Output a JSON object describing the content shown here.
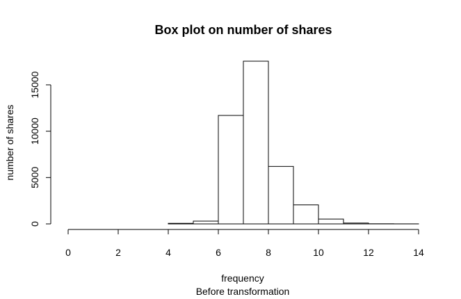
{
  "chart_data": {
    "type": "bar",
    "title": "Box plot on number of shares",
    "xlabel": "frequency",
    "subtitle": "Before transformation",
    "ylabel": "number of shares",
    "bins": [
      {
        "from": 0,
        "to": 1,
        "value": 0
      },
      {
        "from": 1,
        "to": 2,
        "value": 0
      },
      {
        "from": 2,
        "to": 3,
        "value": 0
      },
      {
        "from": 3,
        "to": 4,
        "value": 0
      },
      {
        "from": 4,
        "to": 5,
        "value": 60
      },
      {
        "from": 5,
        "to": 6,
        "value": 300
      },
      {
        "from": 6,
        "to": 7,
        "value": 11700
      },
      {
        "from": 7,
        "to": 8,
        "value": 17550
      },
      {
        "from": 8,
        "to": 9,
        "value": 6200
      },
      {
        "from": 9,
        "to": 10,
        "value": 2050
      },
      {
        "from": 10,
        "to": 11,
        "value": 520
      },
      {
        "from": 11,
        "to": 12,
        "value": 90
      },
      {
        "from": 12,
        "to": 13,
        "value": 15
      },
      {
        "from": 13,
        "to": 14,
        "value": 5
      }
    ],
    "xlim": [
      0,
      14
    ],
    "ylim": [
      0,
      17550
    ],
    "x_ticks": [
      "0",
      "2",
      "4",
      "6",
      "8",
      "10",
      "12",
      "14"
    ],
    "y_ticks": [
      "0",
      "5000",
      "10000",
      "15000"
    ],
    "grid": false,
    "bar_fill": "#ffffff",
    "bar_stroke": "#000000"
  }
}
